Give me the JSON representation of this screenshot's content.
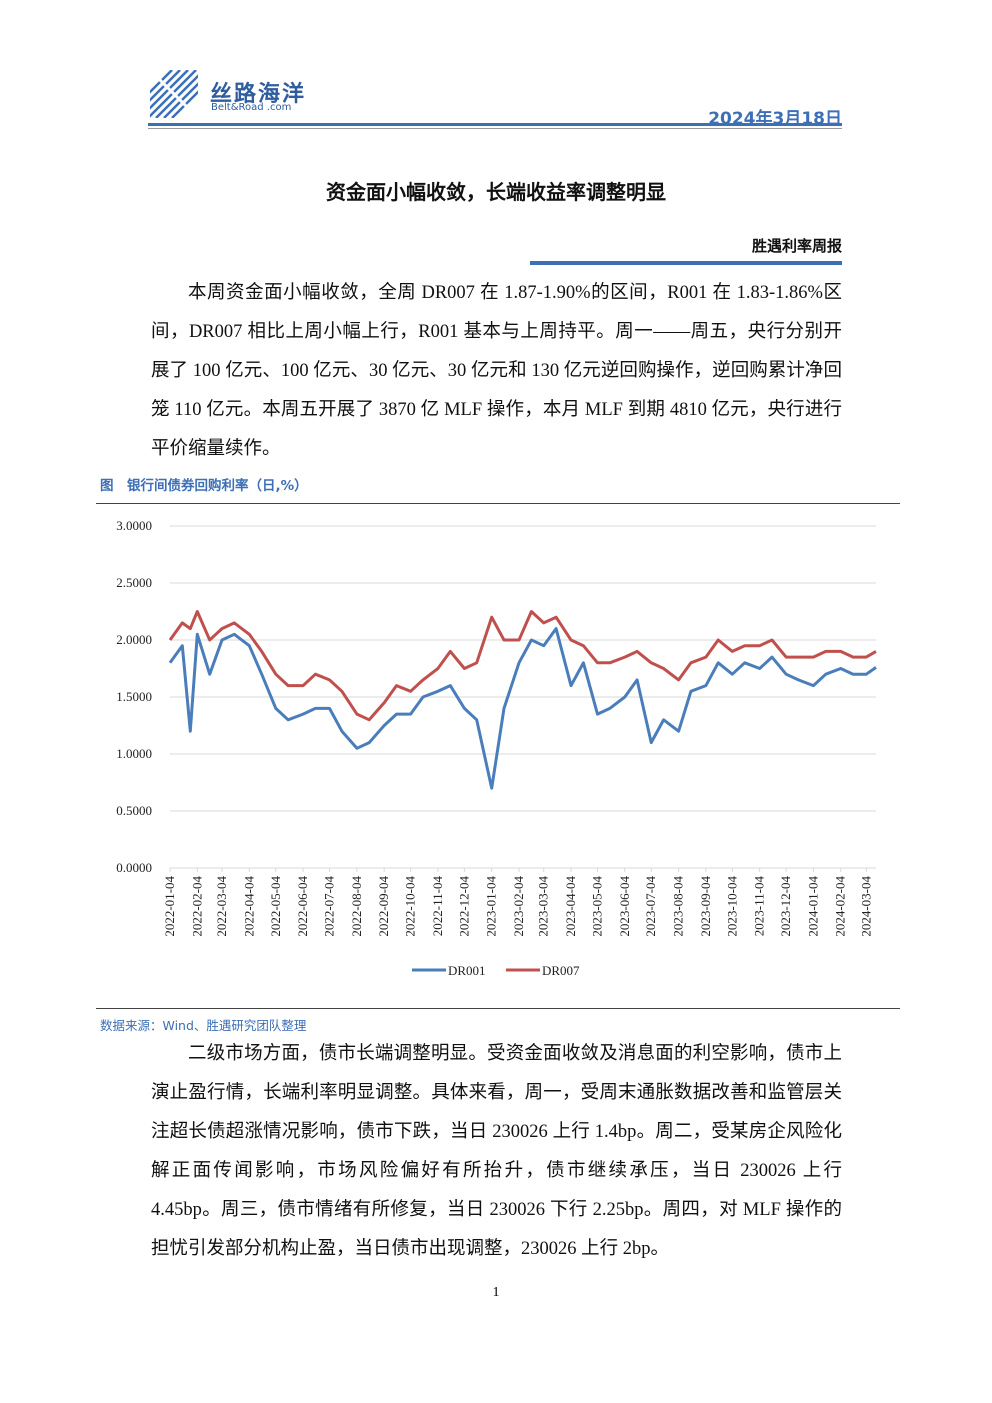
{
  "header": {
    "logo_cn": "丝路海洋",
    "logo_en": "Belt&Road .com",
    "date": "2024年3月18日"
  },
  "title": "资金面小幅收敛，长端收益率调整明显",
  "subtitle": "胜遇利率周报",
  "paragraph1": "本周资金面小幅收敛，全周 DR007 在 1.87-1.90%的区间，R001 在 1.83-1.86%区间，DR007 相比上周小幅上行，R001 基本与上周持平。周一——周五，央行分别开展了 100 亿元、100 亿元、30 亿元、30 亿元和 130 亿元逆回购操作，逆回购累计净回笼 110 亿元。本周五开展了 3870 亿 MLF 操作，本月 MLF 到期 4810 亿元，央行进行平价缩量续作。",
  "figure_caption": "图　银行间债券回购利率（日,%）",
  "chart_data": {
    "type": "line",
    "x": [
      "2022-01-04",
      "2022-01-18",
      "2022-01-27",
      "2022-02-04",
      "2022-02-18",
      "2022-03-04",
      "2022-03-18",
      "2022-04-04",
      "2022-04-18",
      "2022-05-04",
      "2022-05-18",
      "2022-06-04",
      "2022-06-18",
      "2022-07-04",
      "2022-07-18",
      "2022-08-04",
      "2022-08-18",
      "2022-09-04",
      "2022-09-18",
      "2022-10-04",
      "2022-10-18",
      "2022-11-04",
      "2022-11-18",
      "2022-12-04",
      "2022-12-18",
      "2023-01-04",
      "2023-01-18",
      "2023-02-04",
      "2023-02-18",
      "2023-03-04",
      "2023-03-18",
      "2023-04-04",
      "2023-04-18",
      "2023-05-04",
      "2023-05-18",
      "2023-06-04",
      "2023-06-18",
      "2023-07-04",
      "2023-07-18",
      "2023-08-04",
      "2023-08-18",
      "2023-09-04",
      "2023-09-18",
      "2023-10-04",
      "2023-10-18",
      "2023-11-04",
      "2023-11-18",
      "2023-12-04",
      "2023-12-18",
      "2024-01-04",
      "2024-01-18",
      "2024-02-04",
      "2024-02-18",
      "2024-03-04",
      "2024-03-15"
    ],
    "series": [
      {
        "name": "DR001",
        "color": "#4a7ebb",
        "values": [
          1.8,
          1.95,
          1.2,
          2.05,
          1.7,
          2.0,
          2.05,
          1.95,
          1.7,
          1.4,
          1.3,
          1.35,
          1.4,
          1.4,
          1.2,
          1.05,
          1.1,
          1.25,
          1.35,
          1.35,
          1.5,
          1.55,
          1.6,
          1.4,
          1.3,
          0.7,
          1.4,
          1.8,
          2.0,
          1.95,
          2.1,
          1.6,
          1.8,
          1.35,
          1.4,
          1.5,
          1.65,
          1.1,
          1.3,
          1.2,
          1.55,
          1.6,
          1.8,
          1.7,
          1.8,
          1.75,
          1.85,
          1.7,
          1.65,
          1.6,
          1.7,
          1.75,
          1.7,
          1.7,
          1.76
        ]
      },
      {
        "name": "DR007",
        "color": "#c0504d",
        "values": [
          2.0,
          2.15,
          2.1,
          2.25,
          2.0,
          2.1,
          2.15,
          2.05,
          1.9,
          1.7,
          1.6,
          1.6,
          1.7,
          1.65,
          1.55,
          1.35,
          1.3,
          1.45,
          1.6,
          1.55,
          1.65,
          1.75,
          1.9,
          1.75,
          1.8,
          2.2,
          2.0,
          2.0,
          2.25,
          2.15,
          2.2,
          2.0,
          1.95,
          1.8,
          1.8,
          1.85,
          1.9,
          1.8,
          1.75,
          1.65,
          1.8,
          1.85,
          2.0,
          1.9,
          1.95,
          1.95,
          2.0,
          1.85,
          1.85,
          1.85,
          1.9,
          1.9,
          1.85,
          1.85,
          1.9
        ]
      }
    ],
    "xlim": [
      "2022-01-04",
      "2024-03-15"
    ],
    "xticks": [
      "2022-01-04",
      "2022-02-04",
      "2022-03-04",
      "2022-04-04",
      "2022-05-04",
      "2022-06-04",
      "2022-07-04",
      "2022-08-04",
      "2022-09-04",
      "2022-10-04",
      "2022-11-04",
      "2022-12-04",
      "2023-01-04",
      "2023-02-04",
      "2023-03-04",
      "2023-04-04",
      "2023-05-04",
      "2023-06-04",
      "2023-07-04",
      "2023-08-04",
      "2023-09-04",
      "2023-10-04",
      "2023-11-04",
      "2023-12-04",
      "2024-01-04",
      "2024-02-04",
      "2024-03-04"
    ],
    "ylim": [
      0,
      3
    ],
    "yticks": [
      {
        "value": 0,
        "label": "0.0000"
      },
      {
        "value": 0.5,
        "label": "0.5000"
      },
      {
        "value": 1,
        "label": "1.0000"
      },
      {
        "value": 1.5,
        "label": "1.5000"
      },
      {
        "value": 2,
        "label": "2.0000"
      },
      {
        "value": 2.5,
        "label": "2.5000"
      },
      {
        "value": 3,
        "label": "3.0000"
      }
    ],
    "grid": true
  },
  "source": "数据来源：Wind、胜遇研究团队整理",
  "paragraph2": "二级市场方面，债市长端调整明显。受资金面收敛及消息面的利空影响，债市上演止盈行情，长端利率明显调整。具体来看，周一，受周末通胀数据改善和监管层关注超长债超涨情况影响，债市下跌，当日 230026 上行 1.4bp。周二，受某房企风险化解正面传闻影响，市场风险偏好有所抬升，债市继续承压，当日 230026 上行 4.45bp。周三，债市情绪有所修复，当日 230026 下行 2.25bp。周四，对 MLF 操作的担忧引发部分机构止盈，当日债市出现调整，230026 上行 2bp。",
  "page_number": "1"
}
